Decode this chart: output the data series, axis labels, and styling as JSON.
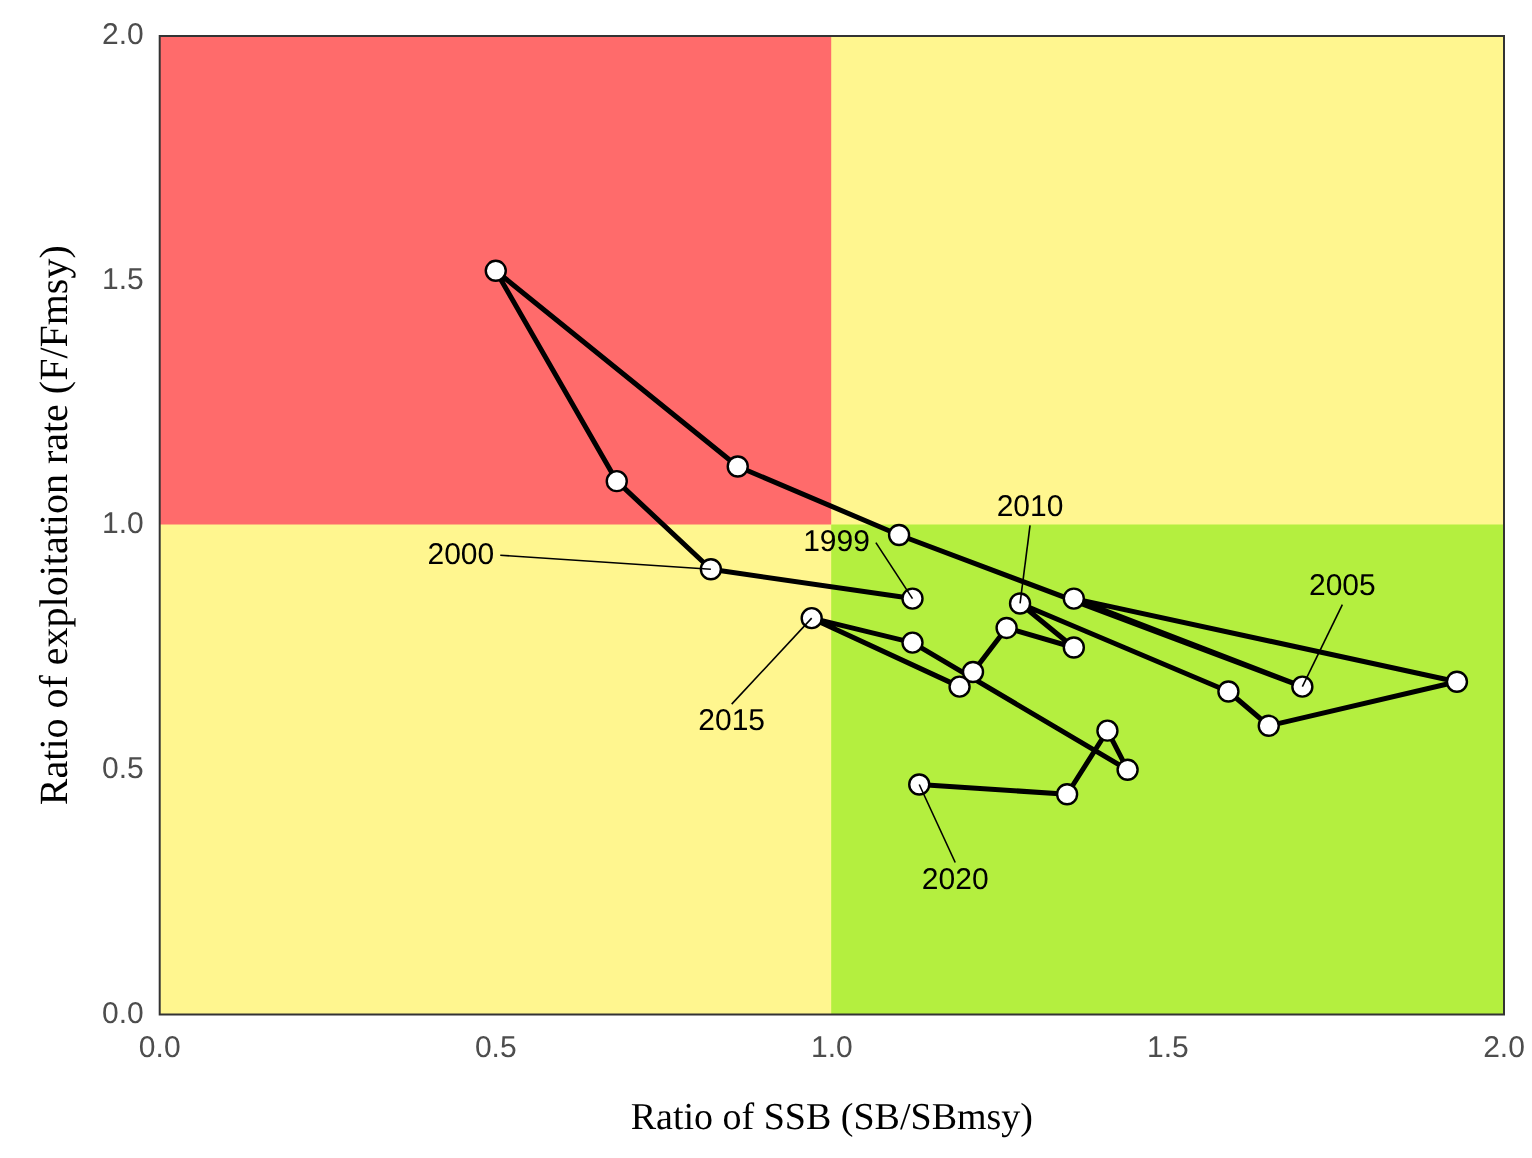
{
  "chart_data": {
    "type": "line",
    "xlabel": "Ratio of SSB (SB/SBmsy)",
    "ylabel": "Ratio of exploitation rate (F/Fmsy)",
    "xlim": [
      0,
      2
    ],
    "ylim": [
      0,
      2
    ],
    "xticks": [
      {
        "value": 0,
        "label": "0.0"
      },
      0.5,
      {
        "value": 1,
        "label": "1.0"
      },
      1.5,
      {
        "value": 2,
        "label": "2.0"
      }
    ],
    "yticks": [
      {
        "value": 0,
        "label": "0.0"
      },
      0.5,
      {
        "value": 1,
        "label": "1.0"
      },
      1.5,
      {
        "value": 2,
        "label": "2.0"
      }
    ],
    "grid": false,
    "legend": false,
    "marker": "circle",
    "line_style": "solid",
    "series": [
      {
        "type": "bar",
        "x": [
          0.5,
          1.5
        ],
        "base": [
          0,
          0
        ],
        "values": [
          1,
          1
        ],
        "colors": [
          "#fff68f",
          "#b4ef3f"
        ]
      },
      {
        "type": "bar",
        "x": [
          0.5,
          1.5
        ],
        "base": [
          1,
          1
        ],
        "values": [
          1,
          1
        ],
        "colors": [
          "#ff6b6b",
          "#fff68f"
        ]
      },
      {
        "color": "#000000",
        "x": [
          1.12,
          0.82,
          0.68,
          0.5,
          0.86,
          1.1,
          1.7,
          1.36,
          1.93,
          1.65,
          1.59,
          1.28,
          1.36,
          1.26,
          1.21,
          1.19,
          0.97,
          1.12,
          1.44,
          1.41,
          1.35,
          1.13
        ],
        "values": [
          0.85,
          0.91,
          1.09,
          1.52,
          1.12,
          0.98,
          0.67,
          0.85,
          0.68,
          0.59,
          0.66,
          0.84,
          0.75,
          0.79,
          0.7,
          0.67,
          0.81,
          0.76,
          0.5,
          0.58,
          0.45,
          0.47
        ]
      }
    ],
    "annotations": [
      {
        "text": "1999",
        "x": 1.12,
        "y": 0.85
      },
      {
        "text": "2000",
        "x": 0.82,
        "y": 0.91
      },
      {
        "text": "2005",
        "x": 1.7,
        "y": 0.67
      },
      {
        "text": "2010",
        "x": 1.28,
        "y": 0.84
      },
      {
        "text": "2015",
        "x": 0.97,
        "y": 0.81
      },
      {
        "text": "2020",
        "x": 1.13,
        "y": 0.47
      }
    ]
  }
}
